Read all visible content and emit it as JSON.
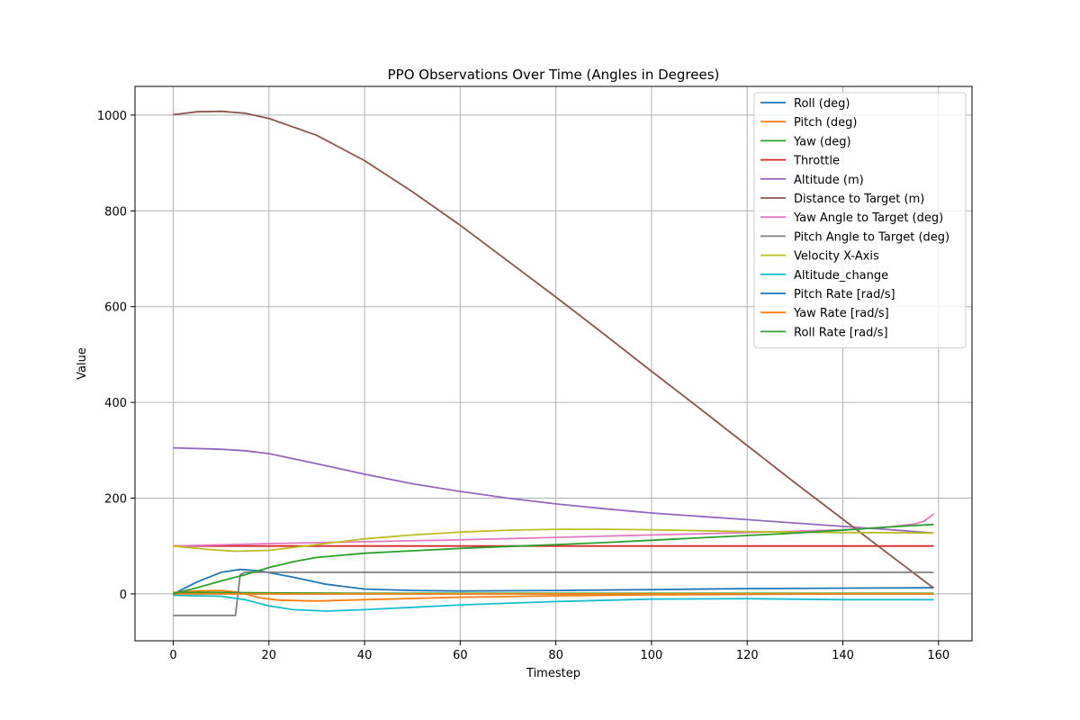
{
  "chart_data": {
    "type": "line",
    "title": "PPO Observations Over Time (Angles in Degrees)",
    "xlabel": "Timestep",
    "ylabel": "Value",
    "xlim": [
      -8,
      167
    ],
    "ylim": [
      -98,
      1060
    ],
    "xticks": [
      0,
      20,
      40,
      60,
      80,
      100,
      120,
      140,
      160
    ],
    "yticks": [
      0,
      200,
      400,
      600,
      800,
      1000
    ],
    "grid": true,
    "legend_position": "top-right",
    "series": [
      {
        "name": "Roll (deg)",
        "color": "#1f77b4",
        "points": [
          [
            0,
            0
          ],
          [
            5,
            25
          ],
          [
            10,
            45
          ],
          [
            14,
            51
          ],
          [
            18,
            48
          ],
          [
            25,
            35
          ],
          [
            32,
            20
          ],
          [
            40,
            10
          ],
          [
            50,
            7
          ],
          [
            60,
            6
          ],
          [
            80,
            7
          ],
          [
            100,
            9
          ],
          [
            120,
            11
          ],
          [
            140,
            12
          ],
          [
            159,
            13
          ]
        ]
      },
      {
        "name": "Pitch (deg)",
        "color": "#ff7f0e",
        "points": [
          [
            0,
            3
          ],
          [
            5,
            6
          ],
          [
            10,
            7
          ],
          [
            14,
            3
          ],
          [
            18,
            -8
          ],
          [
            22,
            -13
          ],
          [
            30,
            -15
          ],
          [
            40,
            -12
          ],
          [
            60,
            -7
          ],
          [
            80,
            -4
          ],
          [
            100,
            -2
          ],
          [
            120,
            -1
          ],
          [
            140,
            0
          ],
          [
            159,
            0
          ]
        ]
      },
      {
        "name": "Yaw (deg)",
        "color": "#2ca02c",
        "points": [
          [
            0,
            2
          ],
          [
            5,
            3
          ],
          [
            10,
            3
          ],
          [
            20,
            2
          ],
          [
            40,
            1
          ],
          [
            60,
            1
          ],
          [
            80,
            1
          ],
          [
            100,
            1
          ],
          [
            120,
            1
          ],
          [
            140,
            1
          ],
          [
            159,
            1
          ]
        ]
      },
      {
        "name": "Throttle",
        "color": "#d62728",
        "points": [
          [
            0,
            100
          ],
          [
            40,
            100
          ],
          [
            80,
            100
          ],
          [
            120,
            100
          ],
          [
            159,
            100
          ]
        ]
      },
      {
        "name": "Altitude (m)",
        "color": "#9467bd",
        "points": [
          [
            0,
            305
          ],
          [
            10,
            302
          ],
          [
            15,
            299
          ],
          [
            20,
            293
          ],
          [
            30,
            272
          ],
          [
            40,
            250
          ],
          [
            50,
            230
          ],
          [
            60,
            214
          ],
          [
            70,
            200
          ],
          [
            80,
            188
          ],
          [
            90,
            178
          ],
          [
            100,
            169
          ],
          [
            110,
            162
          ],
          [
            120,
            155
          ],
          [
            130,
            148
          ],
          [
            140,
            141
          ],
          [
            150,
            134
          ],
          [
            159,
            127
          ]
        ]
      },
      {
        "name": "Distance to Target (m)",
        "color": "#8c564b",
        "points": [
          [
            0,
            1001
          ],
          [
            5,
            1007
          ],
          [
            10,
            1008
          ],
          [
            15,
            1004
          ],
          [
            20,
            993
          ],
          [
            30,
            958
          ],
          [
            40,
            905
          ],
          [
            50,
            840
          ],
          [
            60,
            770
          ],
          [
            70,
            695
          ],
          [
            80,
            620
          ],
          [
            90,
            543
          ],
          [
            100,
            465
          ],
          [
            110,
            388
          ],
          [
            120,
            310
          ],
          [
            130,
            232
          ],
          [
            140,
            156
          ],
          [
            150,
            80
          ],
          [
            159,
            12
          ]
        ]
      },
      {
        "name": "Yaw Angle to Target (deg)",
        "color": "#e377c2",
        "points": [
          [
            0,
            100
          ],
          [
            20,
            105
          ],
          [
            40,
            109
          ],
          [
            60,
            113
          ],
          [
            80,
            118
          ],
          [
            100,
            123
          ],
          [
            120,
            128
          ],
          [
            140,
            134
          ],
          [
            150,
            140
          ],
          [
            155,
            146
          ],
          [
            157,
            152
          ],
          [
            159,
            167
          ]
        ]
      },
      {
        "name": "Pitch Angle to Target (deg)",
        "color": "#7f7f7f",
        "points": [
          [
            0,
            -45
          ],
          [
            12,
            -45
          ],
          [
            13,
            -45
          ],
          [
            14,
            40
          ],
          [
            15,
            45
          ],
          [
            40,
            45
          ],
          [
            80,
            45
          ],
          [
            120,
            45
          ],
          [
            159,
            45
          ]
        ]
      },
      {
        "name": "Velocity X-Axis",
        "color": "#bcbd22",
        "points": [
          [
            0,
            100
          ],
          [
            7,
            93
          ],
          [
            13,
            89
          ],
          [
            20,
            91
          ],
          [
            30,
            103
          ],
          [
            40,
            115
          ],
          [
            50,
            123
          ],
          [
            60,
            129
          ],
          [
            70,
            133
          ],
          [
            80,
            135
          ],
          [
            90,
            135
          ],
          [
            100,
            134
          ],
          [
            110,
            132
          ],
          [
            120,
            130
          ],
          [
            130,
            129
          ],
          [
            140,
            128
          ],
          [
            150,
            128
          ],
          [
            159,
            127
          ]
        ]
      },
      {
        "name": "Altitude_change",
        "color": "#17becf",
        "points": [
          [
            0,
            -3
          ],
          [
            10,
            -5
          ],
          [
            15,
            -12
          ],
          [
            20,
            -25
          ],
          [
            25,
            -33
          ],
          [
            32,
            -36
          ],
          [
            40,
            -33
          ],
          [
            50,
            -28
          ],
          [
            60,
            -23
          ],
          [
            80,
            -16
          ],
          [
            100,
            -11
          ],
          [
            120,
            -10
          ],
          [
            140,
            -12
          ],
          [
            159,
            -12
          ]
        ]
      },
      {
        "name": "Pitch Rate [rad/s]",
        "color": "#1f77b4",
        "points": [
          [
            0,
            0
          ],
          [
            20,
            0
          ],
          [
            40,
            0
          ],
          [
            80,
            0
          ],
          [
            120,
            0
          ],
          [
            159,
            0
          ]
        ]
      },
      {
        "name": "Yaw Rate [rad/s]",
        "color": "#ff7f0e",
        "points": [
          [
            0,
            0
          ],
          [
            20,
            0
          ],
          [
            40,
            0
          ],
          [
            80,
            0
          ],
          [
            120,
            0
          ],
          [
            159,
            0
          ]
        ]
      },
      {
        "name": "Roll Rate [rad/s]",
        "color": "#2ca02c",
        "points": [
          [
            0,
            0
          ],
          [
            5,
            13
          ],
          [
            10,
            27
          ],
          [
            15,
            40
          ],
          [
            20,
            55
          ],
          [
            25,
            67
          ],
          [
            30,
            76
          ],
          [
            40,
            85
          ],
          [
            50,
            90
          ],
          [
            60,
            95
          ],
          [
            70,
            99
          ],
          [
            80,
            103
          ],
          [
            90,
            107
          ],
          [
            100,
            112
          ],
          [
            110,
            117
          ],
          [
            120,
            122
          ],
          [
            130,
            127
          ],
          [
            140,
            133
          ],
          [
            150,
            140
          ],
          [
            159,
            145
          ]
        ]
      }
    ]
  }
}
